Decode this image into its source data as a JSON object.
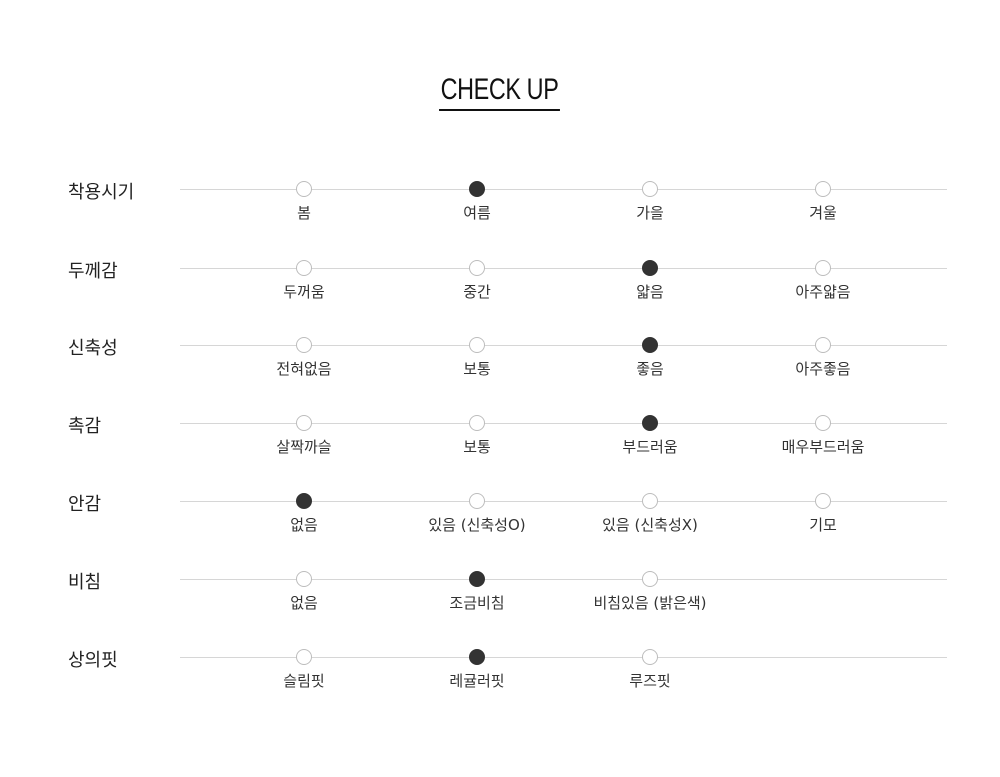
{
  "title": "CHECK UP",
  "colors": {
    "selected": "#333333",
    "unselected_border": "#bdbdbd",
    "line": "#d6d6d6"
  },
  "rows": [
    {
      "label": "착용시기",
      "options": [
        "봄",
        "여름",
        "가을",
        "겨울"
      ],
      "selected": 1
    },
    {
      "label": "두께감",
      "options": [
        "두꺼움",
        "중간",
        "얇음",
        "아주얇음"
      ],
      "selected": 2
    },
    {
      "label": "신축성",
      "options": [
        "전혀없음",
        "보통",
        "좋음",
        "아주좋음"
      ],
      "selected": 2
    },
    {
      "label": "촉감",
      "options": [
        "살짝까슬",
        "보통",
        "부드러움",
        "매우부드러움"
      ],
      "selected": 2
    },
    {
      "label": "안감",
      "options": [
        "없음",
        "있음 (신축성O)",
        "있음 (신축성X)",
        "기모"
      ],
      "selected": 0
    },
    {
      "label": "비침",
      "options": [
        "없음",
        "조금비침",
        "비침있음 (밝은색)"
      ],
      "selected": 1
    },
    {
      "label": "상의핏",
      "options": [
        "슬림핏",
        "레귤러핏",
        "루즈핏"
      ],
      "selected": 1
    }
  ]
}
